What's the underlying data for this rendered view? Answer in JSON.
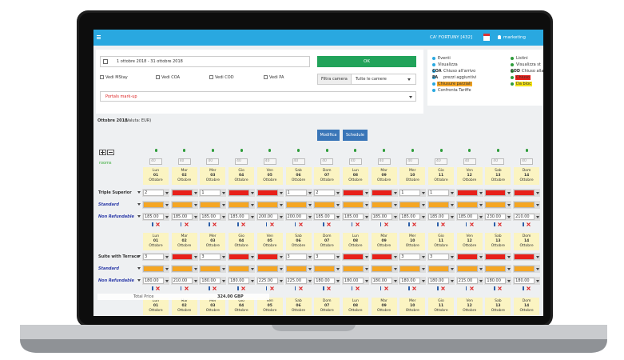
{
  "header": {
    "hotel": "CA' FORTUNY [432]",
    "user": "marketing"
  },
  "filters": {
    "date_range": "1 ottobre 2018 - 31 ottobre 2018",
    "ok": "OK",
    "checkboxes": [
      "Vedi MStay",
      "Vedi COA",
      "Vedi COD",
      "Vedi PA"
    ],
    "filter_label": "Filtra camera",
    "filter_value": "Tutte le camere",
    "portals": "Portals mark-up"
  },
  "legend": {
    "left": [
      {
        "text": "Eventi"
      },
      {
        "text": "Visualizza"
      },
      {
        "code": "COA",
        "text": "Chiuso all'arrivo"
      },
      {
        "code": "PA",
        "text": "prezzi aggiuntivi"
      },
      {
        "text": "Chiusure parziali",
        "color": "#f5a623"
      },
      {
        "text": "Confronta Tariffe"
      }
    ],
    "right": [
      {
        "text": "Listini"
      },
      {
        "text": "Visualizza st"
      },
      {
        "code": "COD",
        "text": "Chiuso alla"
      },
      {
        "text": "Chiuso",
        "color": "#e8201a"
      },
      {
        "text": "Da bloc",
        "color": "#f4e313"
      }
    ]
  },
  "calendar": {
    "title": "Ottobre 2018",
    "currency": "(Valuta: EUR)",
    "buttons": [
      "Modifica",
      "Schedule"
    ],
    "rooms_label": "rooms",
    "room_counts": [
      "40",
      "40",
      "40",
      "40",
      "40",
      "40",
      "40",
      "40",
      "40",
      "40",
      "40",
      "40",
      "40",
      "40"
    ],
    "days": [
      {
        "weekday": "Lun",
        "day": "01",
        "month": "Ottobre"
      },
      {
        "weekday": "Mar",
        "day": "02",
        "month": "Ottobre"
      },
      {
        "weekday": "Mer",
        "day": "03",
        "month": "Ottobre"
      },
      {
        "weekday": "Gio",
        "day": "04",
        "month": "Ottobre"
      },
      {
        "weekday": "Ven",
        "day": "05",
        "month": "Ottobre"
      },
      {
        "weekday": "Sab",
        "day": "06",
        "month": "Ottobre"
      },
      {
        "weekday": "Dom",
        "day": "07",
        "month": "Ottobre"
      },
      {
        "weekday": "Lun",
        "day": "08",
        "month": "Ottobre"
      },
      {
        "weekday": "Mar",
        "day": "09",
        "month": "Ottobre"
      },
      {
        "weekday": "Mer",
        "day": "10",
        "month": "Ottobre"
      },
      {
        "weekday": "Gio",
        "day": "11",
        "month": "Ottobre"
      },
      {
        "weekday": "Ven",
        "day": "12",
        "month": "Ottobre"
      },
      {
        "weekday": "Sab",
        "day": "13",
        "month": "Ottobre"
      },
      {
        "weekday": "Dom",
        "day": "14",
        "month": "Ottobre"
      }
    ],
    "rooms": [
      {
        "name": "Triple Superior",
        "availability": [
          "2",
          null,
          "1",
          null,
          null,
          "1",
          "2",
          null,
          null,
          "1",
          "1",
          null,
          null,
          null
        ],
        "rates": [
          {
            "name": "Standard"
          },
          {
            "name": "Non Refundable",
            "prices": [
              "185.00",
              "185.00",
              "185.00",
              "185.00",
              "200.00",
              "200.00",
              "185.00",
              "185.00",
              "185.00",
              "185.00",
              "185.00",
              "185.00",
              "230.00",
              "210.00"
            ]
          }
        ]
      },
      {
        "name": "Suite with Terrace",
        "availability": [
          "3",
          null,
          "3",
          null,
          null,
          "3",
          "3",
          null,
          null,
          "3",
          "3",
          null,
          null,
          null
        ],
        "rates": [
          {
            "name": "Standard"
          },
          {
            "name": "Non Refundable",
            "prices": [
              "180.00",
              "210.00",
              "180.00",
              "180.00",
              "225.00",
              "225.00",
              "180.00",
              "180.00",
              "180.00",
              "180.00",
              "180.00",
              "215.00",
              "180.00",
              "180.00"
            ]
          }
        ]
      }
    ],
    "total_label": "Total Price",
    "total_value": "324.00 GBP"
  }
}
